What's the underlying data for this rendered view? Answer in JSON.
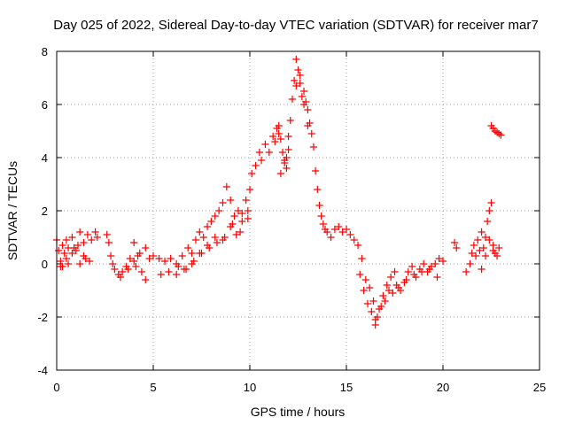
{
  "chart_data": {
    "type": "scatter",
    "title": "Day 025 of 2022, Sidereal Day-to-day VTEC variation (SDTVAR) for receiver mar7",
    "xlabel": "GPS time / hours",
    "ylabel": "SDTVAR / TECUs",
    "xlim": [
      0,
      25
    ],
    "ylim": [
      -4,
      8
    ],
    "xticks": [
      0,
      5,
      10,
      15,
      20,
      25
    ],
    "xtick_labels": [
      "0",
      "5",
      "10",
      "15",
      "20",
      "25"
    ],
    "yticks": [
      -4,
      -2,
      0,
      2,
      4,
      6,
      8
    ],
    "ytick_labels": [
      "-4",
      "-2",
      "0",
      "2",
      "4",
      "6",
      "8"
    ],
    "grid": true,
    "marker": "plus",
    "color": "#ff0000",
    "series": [
      {
        "name": "SDTVAR",
        "x": [
          0.0,
          0.1,
          0.2,
          0.3,
          0.4,
          0.5,
          0.6,
          0.8,
          1.0,
          1.2,
          1.4,
          1.6,
          1.8,
          2.0,
          2.1,
          0.2,
          0.5,
          0.8,
          1.1,
          1.4,
          1.7,
          0.3,
          0.6,
          0.9,
          1.2,
          1.5,
          2.6,
          2.7,
          2.8,
          2.9,
          3.0,
          3.2,
          3.4,
          3.6,
          3.8,
          4.0,
          4.2,
          4.4,
          4.6,
          4.8,
          3.3,
          3.7,
          4.1,
          4.0,
          4.3,
          4.6,
          5.0,
          5.3,
          5.6,
          5.9,
          6.2,
          6.5,
          6.8,
          7.0,
          7.2,
          7.4,
          7.6,
          7.8,
          8.0,
          8.2,
          8.4,
          8.6,
          8.8,
          9.0,
          9.2,
          9.4,
          9.6,
          9.8,
          10.0,
          6.3,
          6.7,
          7.1,
          7.5,
          7.9,
          8.3,
          8.7,
          9.1,
          9.5,
          9.9,
          5.4,
          5.8,
          6.2,
          6.6,
          7.0,
          7.4,
          7.8,
          8.2,
          8.6,
          9.0,
          9.3,
          9.6,
          9.9,
          10.1,
          10.3,
          10.5,
          10.6,
          10.8,
          11.0,
          11.2,
          11.4,
          11.5,
          11.6,
          11.7,
          11.8,
          11.9,
          12.0,
          11.6,
          11.8,
          12.0,
          11.3,
          11.5,
          11.9,
          12.1,
          12.2,
          12.3,
          12.4,
          12.5,
          12.6,
          12.7,
          12.8,
          12.9,
          13.0,
          13.1,
          13.2,
          13.3,
          13.4,
          12.4,
          12.6,
          12.8,
          13.0,
          13.5,
          13.6,
          13.7,
          13.8,
          13.9,
          14.0,
          14.2,
          14.4,
          14.6,
          14.8,
          15.0,
          15.2,
          15.4,
          15.6,
          15.8,
          16.0,
          16.2,
          16.4,
          16.5,
          16.6,
          16.8,
          17.0,
          17.2,
          17.4,
          17.6,
          15.7,
          15.9,
          16.1,
          16.3,
          16.5,
          16.7,
          16.9,
          17.1,
          17.3,
          17.5,
          17.8,
          18.0,
          18.2,
          18.4,
          18.6,
          18.8,
          19.0,
          19.2,
          19.4,
          19.6,
          19.8,
          20.0,
          17.7,
          18.1,
          18.5,
          18.9,
          19.3,
          19.7,
          20.6,
          20.7,
          21.2,
          21.4,
          21.5,
          21.6,
          21.7,
          21.8,
          21.9,
          22.0,
          22.1,
          22.2,
          22.3,
          22.4,
          22.5,
          22.6,
          22.7,
          22.8,
          22.9,
          22.0,
          22.2,
          22.4,
          22.6,
          22.5,
          22.6,
          22.7,
          22.8,
          22.9,
          23.0
        ],
        "y": [
          0.9,
          0.5,
          0.1,
          0.7,
          0.4,
          0.9,
          0.6,
          1.0,
          0.5,
          1.2,
          0.8,
          1.1,
          0.9,
          1.2,
          1.0,
          -0.1,
          0.2,
          0.4,
          0.7,
          0.3,
          0.1,
          -0.1,
          0.0,
          0.6,
          0.0,
          0.2,
          1.1,
          0.8,
          0.3,
          0.0,
          -0.2,
          -0.4,
          -0.3,
          -0.1,
          0.2,
          0.8,
          0.3,
          -0.3,
          -0.6,
          0.2,
          -0.5,
          -0.2,
          -0.1,
          0.1,
          0.4,
          0.6,
          0.3,
          0.2,
          0.1,
          0.2,
          0.0,
          0.3,
          0.6,
          0.4,
          0.9,
          1.2,
          1.0,
          1.4,
          1.6,
          1.8,
          2.0,
          2.3,
          2.9,
          2.4,
          1.8,
          2.0,
          1.9,
          2.4,
          2.8,
          -0.1,
          -0.2,
          0.1,
          0.4,
          0.6,
          0.8,
          1.0,
          1.5,
          1.2,
          1.7,
          -0.4,
          -0.3,
          -0.4,
          -0.2,
          0.0,
          0.4,
          0.7,
          1.0,
          0.9,
          1.4,
          1.1,
          1.6,
          2.0,
          3.4,
          3.7,
          4.2,
          3.9,
          4.5,
          4.2,
          4.8,
          5.1,
          5.2,
          4.7,
          4.2,
          3.8,
          3.6,
          4.8,
          3.4,
          3.9,
          4.3,
          4.6,
          4.9,
          4.0,
          5.4,
          6.2,
          6.9,
          7.7,
          7.3,
          6.8,
          6.3,
          6.5,
          6.1,
          5.8,
          5.3,
          4.9,
          4.4,
          3.5,
          6.7,
          7.1,
          6.0,
          5.2,
          2.8,
          2.2,
          1.8,
          1.5,
          1.3,
          1.2,
          1.0,
          1.3,
          1.4,
          1.2,
          1.3,
          1.1,
          0.9,
          0.7,
          0.2,
          -0.6,
          -0.9,
          -1.4,
          -2.3,
          -2.0,
          -1.6,
          -1.4,
          -1.0,
          -1.1,
          -0.8,
          -0.4,
          -1.0,
          -1.5,
          -1.8,
          -2.1,
          -1.7,
          -1.2,
          -0.8,
          -0.5,
          -0.3,
          -1.0,
          -0.7,
          -0.3,
          -0.1,
          -0.5,
          -0.2,
          0.0,
          -0.3,
          -0.1,
          0.0,
          0.2,
          0.1,
          -0.9,
          -0.6,
          -0.4,
          -0.3,
          -0.2,
          -0.5,
          0.8,
          0.6,
          -0.3,
          0.0,
          0.4,
          0.7,
          0.3,
          0.9,
          0.5,
          1.2,
          0.6,
          1.0,
          1.6,
          2.0,
          2.3,
          0.7,
          0.4,
          0.3,
          0.6,
          -0.2,
          0.3,
          0.9,
          0.5,
          5.2,
          5.1,
          5.0,
          4.95,
          4.9,
          4.85
        ]
      }
    ]
  }
}
